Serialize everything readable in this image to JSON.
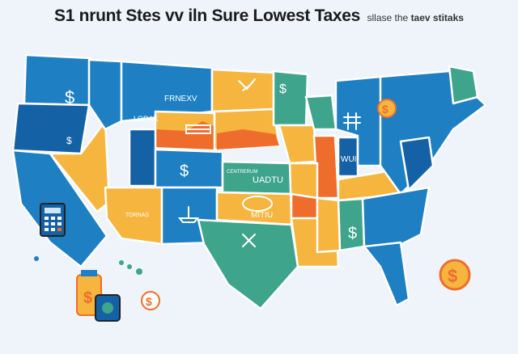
{
  "title": {
    "main": "S1 nrunt Stes vv iln Sure Lowest Taxes",
    "sub_light": "sllase the",
    "sub_bold": "taev stitaks"
  },
  "map_labels": {
    "montana": "FRNEXV",
    "idaho": "LORAX",
    "kansas_small": "CENTRERUM",
    "kansas": "UADTU",
    "arizona": "TORNAS",
    "oklahoma": "MITIU",
    "indiana": "WUI",
    "georgia": "$",
    "currency_symbol": "$"
  },
  "colors": {
    "background": "#eef4fa",
    "blue": "#1e7fc3",
    "dark_blue": "#1561a6",
    "yellow": "#f5b53f",
    "orange": "#ef6d2c",
    "teal": "#3ea48c"
  }
}
